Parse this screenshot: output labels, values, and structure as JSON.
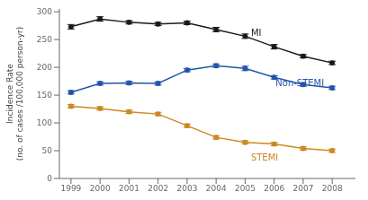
{
  "chart_data": {
    "type": "line",
    "x": [
      1999,
      2000,
      2001,
      2002,
      2003,
      2004,
      2005,
      2006,
      2007,
      2008
    ],
    "series": [
      {
        "name": "MI",
        "color": "#1a1a1a",
        "values": [
          273,
          287,
          281,
          278,
          280,
          268,
          256,
          237,
          220,
          208
        ],
        "errors": [
          4,
          4,
          3,
          3,
          3,
          4,
          4,
          4,
          3,
          3
        ],
        "marker": "circle"
      },
      {
        "name": "Non-STEMI",
        "color": "#2255aa",
        "values": [
          155,
          171,
          172,
          171,
          195,
          203,
          198,
          182,
          169,
          163
        ],
        "errors": [
          3,
          3,
          3,
          3,
          3,
          3,
          4,
          3,
          3,
          3
        ],
        "marker": "circle"
      },
      {
        "name": "STEMI",
        "color": "#cc8822",
        "values": [
          130,
          126,
          120,
          116,
          95,
          74,
          65,
          62,
          54,
          50
        ],
        "errors": [
          3,
          3,
          3,
          3,
          3,
          3,
          3,
          3,
          3,
          3
        ],
        "marker": "circle"
      }
    ],
    "y_label": "Incidence Rate\n(no. of cases /100,000 person-yr)",
    "xlim": [
      1998.6,
      2008.8
    ],
    "xticks": [
      1999,
      2000,
      2001,
      2002,
      2003,
      2004,
      2005,
      2006,
      2007,
      2008
    ],
    "ylim": [
      0,
      305
    ],
    "yticks": [
      0,
      50,
      100,
      150,
      200,
      250,
      300
    ],
    "grid": false,
    "annotations": [
      {
        "text": "MI",
        "x": 2005.2,
        "y": 262,
        "color": "#1a1a1a"
      },
      {
        "text": "Non-STEMI",
        "x": 2006.05,
        "y": 172,
        "color": "#2255aa"
      },
      {
        "text": "STEMI",
        "x": 2005.2,
        "y": 38,
        "color": "#cc8822"
      }
    ]
  }
}
